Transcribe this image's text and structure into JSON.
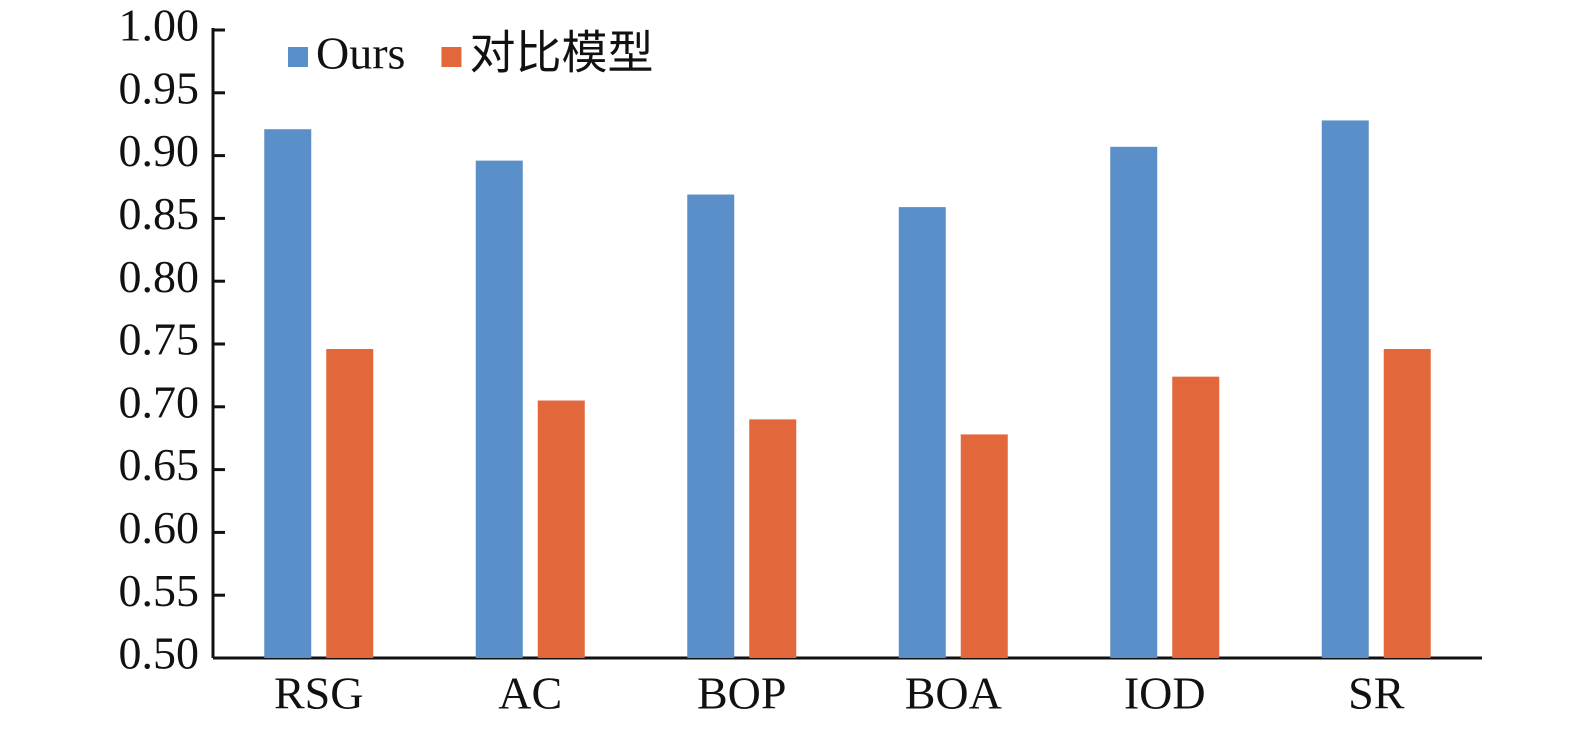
{
  "chart_data": {
    "type": "bar",
    "categories": [
      "RSG",
      "AC",
      "BOP",
      "BOA",
      "IOD",
      "SR"
    ],
    "series": [
      {
        "name": "Ours",
        "color": "#5b8fc9",
        "values": [
          0.921,
          0.896,
          0.869,
          0.859,
          0.907,
          0.928
        ]
      },
      {
        "name": "对比模型",
        "color": "#e2673a",
        "values": [
          0.746,
          0.705,
          0.69,
          0.678,
          0.724,
          0.746
        ]
      }
    ],
    "ylim": [
      0.5,
      1.0
    ],
    "yticks": [
      {
        "value": 0.5,
        "label": "0.50"
      },
      0.55,
      {
        "value": 0.6,
        "label": "0.60"
      },
      0.65,
      {
        "value": 0.7,
        "label": "0.70"
      },
      0.75,
      {
        "value": 0.8,
        "label": "0.80"
      },
      0.85,
      {
        "value": 0.9,
        "label": "0.90"
      },
      0.95,
      {
        "value": 1.0,
        "label": "1.00"
      }
    ],
    "legend": "top-left",
    "grid": false
  }
}
